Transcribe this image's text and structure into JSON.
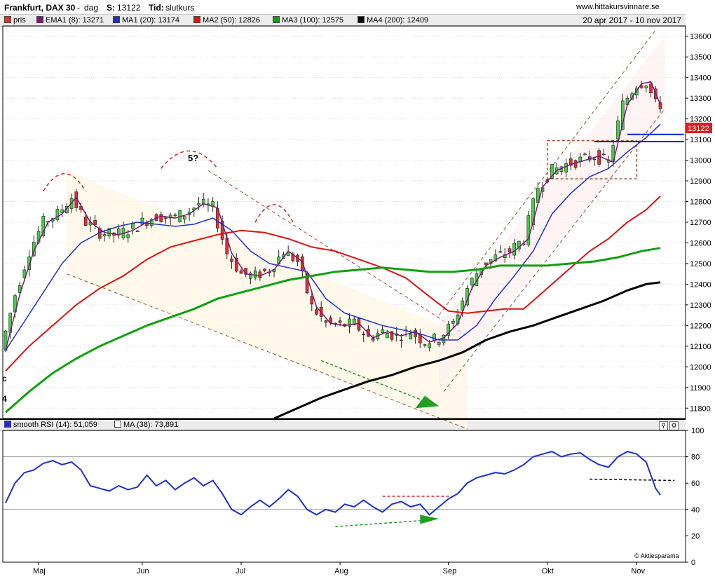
{
  "header": {
    "instrument": "Frankfurt, DAX 30",
    "sep": "-",
    "period": "dag",
    "last_label": "S:",
    "last_value": "13122",
    "time_label": "Tid:",
    "time_value": "slutkurs",
    "site": "www.hittakursvinnare.se",
    "date_range": "20 apr 2017 - 10 nov 2017"
  },
  "legend": [
    {
      "label": "pris",
      "color": "#e03030"
    },
    {
      "label": "EMA1 (8): 13271",
      "color": "#7a1a7a"
    },
    {
      "label": "MA1 (20): 13174",
      "color": "#2030d0"
    },
    {
      "label": "MA2 (50): 12826",
      "color": "#e01010"
    },
    {
      "label": "MA3 (100): 12575",
      "color": "#10a010"
    },
    {
      "label": "MA4 (200): 12409",
      "color": "#000000"
    }
  ],
  "rsi_legend": [
    {
      "label": "smooth RSI (14): 51,059",
      "color": "#2030d0"
    },
    {
      "label": "MA (38): 73,891",
      "color": "#ffffff"
    }
  ],
  "annotations": {
    "five_q": "5?",
    "left_c": "c",
    "left_4": "4",
    "copyright": "© Aktiesparama"
  },
  "price_badge": "13122",
  "chart_data": {
    "type": "line",
    "price_axis": {
      "ylim": [
        11750,
        13650
      ],
      "ticks": [
        "11800",
        "11900",
        "12000",
        "12100",
        "12200",
        "12300",
        "12400",
        "12500",
        "12600",
        "12700",
        "12800",
        "12900",
        "13000",
        "13100",
        "13200",
        "13300",
        "13400",
        "13500",
        "13600"
      ]
    },
    "rsi_axis": {
      "ylim": [
        0,
        100
      ],
      "ticks": [
        "0",
        "20",
        "40",
        "60",
        "80",
        "100"
      ]
    },
    "months": [
      {
        "label": "Maj",
        "day": 7
      },
      {
        "label": "Jun",
        "day": 29
      },
      {
        "label": "Jul",
        "day": 50
      },
      {
        "label": "Aug",
        "day": 71
      },
      {
        "label": "Sep",
        "day": 94
      },
      {
        "label": "Okt",
        "day": 115
      },
      {
        "label": "Nov",
        "day": 134
      }
    ],
    "days_total": 146,
    "price_series": [
      {
        "name": "EMA1 (8)",
        "color": "#7a1a7a",
        "points": [
          [
            0,
            12080
          ],
          [
            3,
            12350
          ],
          [
            6,
            12560
          ],
          [
            9,
            12700
          ],
          [
            12,
            12740
          ],
          [
            15,
            12820
          ],
          [
            18,
            12700
          ],
          [
            21,
            12650
          ],
          [
            24,
            12640
          ],
          [
            27,
            12660
          ],
          [
            30,
            12700
          ],
          [
            33,
            12730
          ],
          [
            36,
            12720
          ],
          [
            39,
            12740
          ],
          [
            42,
            12790
          ],
          [
            45,
            12770
          ],
          [
            48,
            12550
          ],
          [
            51,
            12450
          ],
          [
            54,
            12440
          ],
          [
            57,
            12470
          ],
          [
            60,
            12560
          ],
          [
            63,
            12510
          ],
          [
            66,
            12290
          ],
          [
            69,
            12210
          ],
          [
            72,
            12200
          ],
          [
            75,
            12210
          ],
          [
            78,
            12140
          ],
          [
            81,
            12170
          ],
          [
            84,
            12150
          ],
          [
            87,
            12170
          ],
          [
            90,
            12120
          ],
          [
            93,
            12140
          ],
          [
            96,
            12210
          ],
          [
            99,
            12380
          ],
          [
            102,
            12490
          ],
          [
            105,
            12530
          ],
          [
            108,
            12560
          ],
          [
            111,
            12620
          ],
          [
            114,
            12870
          ],
          [
            117,
            12950
          ],
          [
            120,
            12980
          ],
          [
            123,
            13000
          ],
          [
            126,
            13020
          ],
          [
            129,
            12990
          ],
          [
            132,
            13270
          ],
          [
            135,
            13370
          ],
          [
            137,
            13380
          ],
          [
            139,
            13270
          ]
        ]
      },
      {
        "name": "MA1 (20)",
        "color": "#2030d0",
        "points": [
          [
            0,
            12080
          ],
          [
            4,
            12220
          ],
          [
            8,
            12360
          ],
          [
            12,
            12500
          ],
          [
            16,
            12600
          ],
          [
            20,
            12650
          ],
          [
            24,
            12680
          ],
          [
            28,
            12700
          ],
          [
            32,
            12690
          ],
          [
            36,
            12680
          ],
          [
            40,
            12690
          ],
          [
            44,
            12720
          ],
          [
            48,
            12660
          ],
          [
            52,
            12560
          ],
          [
            56,
            12500
          ],
          [
            60,
            12480
          ],
          [
            64,
            12460
          ],
          [
            68,
            12330
          ],
          [
            72,
            12260
          ],
          [
            76,
            12230
          ],
          [
            80,
            12200
          ],
          [
            84,
            12180
          ],
          [
            88,
            12160
          ],
          [
            92,
            12130
          ],
          [
            96,
            12130
          ],
          [
            100,
            12200
          ],
          [
            104,
            12330
          ],
          [
            108,
            12440
          ],
          [
            112,
            12560
          ],
          [
            116,
            12740
          ],
          [
            120,
            12840
          ],
          [
            124,
            12920
          ],
          [
            128,
            12960
          ],
          [
            132,
            13040
          ],
          [
            136,
            13110
          ],
          [
            139,
            13174
          ]
        ]
      },
      {
        "name": "MA2 (50)",
        "color": "#e01010",
        "points": [
          [
            0,
            11980
          ],
          [
            5,
            12100
          ],
          [
            10,
            12200
          ],
          [
            15,
            12300
          ],
          [
            20,
            12380
          ],
          [
            25,
            12440
          ],
          [
            30,
            12520
          ],
          [
            35,
            12580
          ],
          [
            40,
            12610
          ],
          [
            45,
            12640
          ],
          [
            50,
            12660
          ],
          [
            55,
            12650
          ],
          [
            60,
            12620
          ],
          [
            65,
            12580
          ],
          [
            70,
            12560
          ],
          [
            75,
            12520
          ],
          [
            80,
            12480
          ],
          [
            85,
            12430
          ],
          [
            90,
            12340
          ],
          [
            94,
            12270
          ],
          [
            98,
            12260
          ],
          [
            102,
            12270
          ],
          [
            106,
            12280
          ],
          [
            110,
            12280
          ],
          [
            112,
            12320
          ],
          [
            116,
            12400
          ],
          [
            120,
            12480
          ],
          [
            124,
            12560
          ],
          [
            128,
            12620
          ],
          [
            132,
            12700
          ],
          [
            136,
            12760
          ],
          [
            139,
            12826
          ]
        ]
      },
      {
        "name": "MA3 (100)",
        "color": "#10a010",
        "points": [
          [
            0,
            11780
          ],
          [
            5,
            11880
          ],
          [
            10,
            11970
          ],
          [
            15,
            12040
          ],
          [
            20,
            12100
          ],
          [
            25,
            12150
          ],
          [
            30,
            12200
          ],
          [
            35,
            12240
          ],
          [
            40,
            12280
          ],
          [
            45,
            12330
          ],
          [
            50,
            12360
          ],
          [
            55,
            12390
          ],
          [
            60,
            12420
          ],
          [
            65,
            12440
          ],
          [
            70,
            12460
          ],
          [
            75,
            12470
          ],
          [
            80,
            12480
          ],
          [
            85,
            12470
          ],
          [
            90,
            12460
          ],
          [
            95,
            12460
          ],
          [
            100,
            12470
          ],
          [
            105,
            12490
          ],
          [
            110,
            12490
          ],
          [
            115,
            12490
          ],
          [
            120,
            12500
          ],
          [
            125,
            12510
          ],
          [
            130,
            12530
          ],
          [
            135,
            12560
          ],
          [
            139,
            12575
          ]
        ]
      },
      {
        "name": "MA4 (200)",
        "color": "#000000",
        "points": [
          [
            57,
            11750
          ],
          [
            62,
            11800
          ],
          [
            67,
            11850
          ],
          [
            72,
            11890
          ],
          [
            77,
            11930
          ],
          [
            82,
            11960
          ],
          [
            87,
            12000
          ],
          [
            92,
            12030
          ],
          [
            97,
            12070
          ],
          [
            102,
            12130
          ],
          [
            107,
            12170
          ],
          [
            112,
            12200
          ],
          [
            117,
            12240
          ],
          [
            122,
            12280
          ],
          [
            127,
            12320
          ],
          [
            132,
            12370
          ],
          [
            136,
            12400
          ],
          [
            139,
            12409
          ]
        ]
      }
    ],
    "rsi_series": [
      {
        "name": "smooth RSI (14)",
        "color": "#2030d0",
        "points": [
          [
            0,
            45
          ],
          [
            2,
            60
          ],
          [
            4,
            68
          ],
          [
            6,
            70
          ],
          [
            8,
            75
          ],
          [
            10,
            77
          ],
          [
            12,
            74
          ],
          [
            14,
            76
          ],
          [
            16,
            70
          ],
          [
            18,
            58
          ],
          [
            20,
            56
          ],
          [
            22,
            54
          ],
          [
            24,
            58
          ],
          [
            26,
            55
          ],
          [
            28,
            57
          ],
          [
            30,
            66
          ],
          [
            32,
            58
          ],
          [
            34,
            62
          ],
          [
            36,
            55
          ],
          [
            38,
            60
          ],
          [
            40,
            64
          ],
          [
            42,
            58
          ],
          [
            44,
            62
          ],
          [
            46,
            52
          ],
          [
            48,
            40
          ],
          [
            50,
            36
          ],
          [
            52,
            42
          ],
          [
            54,
            47
          ],
          [
            56,
            42
          ],
          [
            58,
            48
          ],
          [
            60,
            55
          ],
          [
            62,
            50
          ],
          [
            64,
            40
          ],
          [
            66,
            36
          ],
          [
            68,
            40
          ],
          [
            70,
            38
          ],
          [
            72,
            44
          ],
          [
            74,
            42
          ],
          [
            76,
            47
          ],
          [
            78,
            42
          ],
          [
            80,
            38
          ],
          [
            82,
            44
          ],
          [
            84,
            46
          ],
          [
            86,
            42
          ],
          [
            88,
            44
          ],
          [
            90,
            36
          ],
          [
            92,
            42
          ],
          [
            94,
            48
          ],
          [
            96,
            52
          ],
          [
            98,
            60
          ],
          [
            100,
            64
          ],
          [
            102,
            66
          ],
          [
            104,
            68
          ],
          [
            106,
            67
          ],
          [
            108,
            70
          ],
          [
            110,
            74
          ],
          [
            112,
            80
          ],
          [
            114,
            82
          ],
          [
            116,
            84
          ],
          [
            118,
            80
          ],
          [
            120,
            82
          ],
          [
            122,
            83
          ],
          [
            124,
            78
          ],
          [
            126,
            74
          ],
          [
            128,
            72
          ],
          [
            130,
            80
          ],
          [
            132,
            84
          ],
          [
            134,
            82
          ],
          [
            136,
            76
          ],
          [
            138,
            56
          ],
          [
            139,
            51
          ]
        ]
      }
    ],
    "rsi_ma": {
      "name": "MA (38)",
      "color": "#ffffff"
    }
  }
}
